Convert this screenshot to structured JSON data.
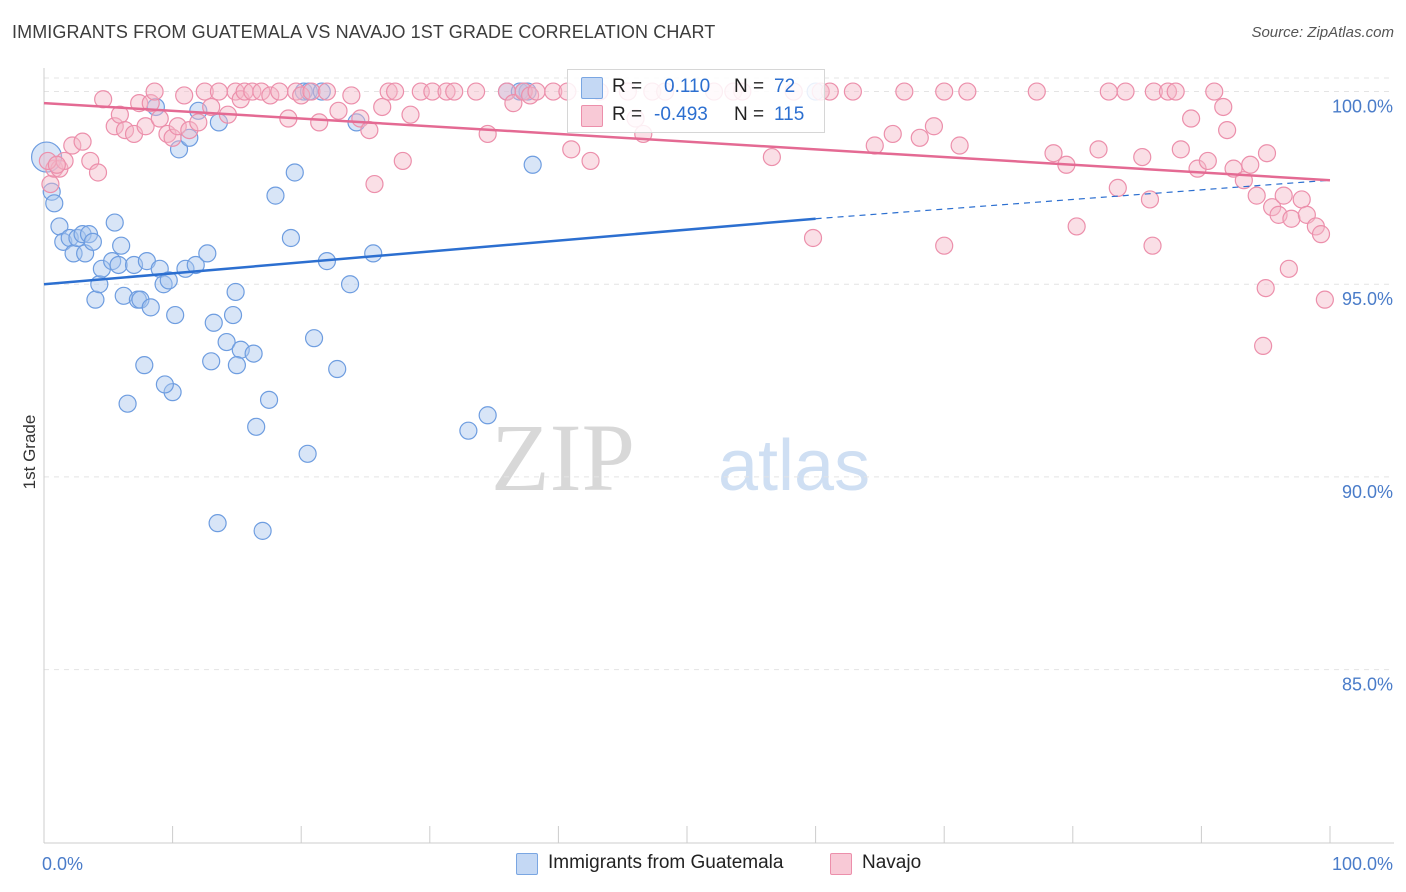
{
  "title": "IMMIGRANTS FROM GUATEMALA VS NAVAJO 1ST GRADE CORRELATION CHART",
  "source": "Source: ZipAtlas.com",
  "watermark": {
    "zip": "ZIP",
    "atlas": "atlas"
  },
  "colors": {
    "blue_fill": "#a9c6ee",
    "blue_stroke": "#6e9de0",
    "blue_line": "#2c6fd0",
    "pink_fill": "#f5b7c8",
    "pink_stroke": "#ec8fab",
    "pink_line": "#e46a93",
    "tick_label": "#4a7cc9",
    "grid": "#e4e4e4",
    "axis": "#cccccc"
  },
  "legend_stats": [
    {
      "r_label": "R =",
      "r_value": "0.110",
      "n_label": "N =",
      "n_value": "72",
      "color": "blue"
    },
    {
      "r_label": "R =",
      "r_value": "-0.493",
      "n_label": "N =",
      "n_value": "115",
      "color": "pink"
    }
  ],
  "chart_data": {
    "type": "scatter",
    "title": "IMMIGRANTS FROM GUATEMALA VS NAVAJO 1ST GRADE CORRELATION CHART",
    "xlabel": "",
    "ylabel": "1st Grade",
    "xlim": [
      0,
      100
    ],
    "ylim": [
      80.5,
      100.3
    ],
    "x_tick_labels": [
      "0.0%",
      "100.0%"
    ],
    "y_ticks": [
      85,
      90,
      95,
      100
    ],
    "y_tick_labels": [
      "85.0%",
      "90.0%",
      "95.0%",
      "100.0%"
    ],
    "legend": [
      "Immigrants from Guatemala",
      "Navajo"
    ],
    "series": [
      {
        "name": "Immigrants from Guatemala",
        "color": "blue",
        "trend": {
          "x": [
            0,
            60
          ],
          "y": [
            95.0,
            96.7
          ],
          "dashed_to": [
            100,
            97.7
          ]
        },
        "points": [
          [
            0.2,
            98.3
          ],
          [
            0.6,
            97.4
          ],
          [
            0.8,
            97.1
          ],
          [
            1.2,
            96.5
          ],
          [
            1.5,
            96.1
          ],
          [
            2.0,
            96.2
          ],
          [
            2.3,
            95.8
          ],
          [
            2.6,
            96.2
          ],
          [
            3.0,
            96.3
          ],
          [
            3.2,
            95.8
          ],
          [
            3.5,
            96.3
          ],
          [
            3.8,
            96.1
          ],
          [
            4.0,
            94.6
          ],
          [
            4.3,
            95.0
          ],
          [
            4.5,
            95.4
          ],
          [
            5.3,
            95.6
          ],
          [
            5.5,
            96.6
          ],
          [
            5.8,
            95.5
          ],
          [
            6.0,
            96.0
          ],
          [
            6.2,
            94.7
          ],
          [
            7.0,
            95.5
          ],
          [
            7.3,
            94.6
          ],
          [
            7.5,
            94.6
          ],
          [
            8.0,
            95.6
          ],
          [
            8.3,
            94.4
          ],
          [
            8.7,
            99.6
          ],
          [
            9.0,
            95.4
          ],
          [
            9.3,
            95.0
          ],
          [
            9.7,
            95.1
          ],
          [
            10.2,
            94.2
          ],
          [
            10.5,
            98.5
          ],
          [
            11.0,
            95.4
          ],
          [
            11.3,
            98.8
          ],
          [
            11.8,
            95.5
          ],
          [
            12.0,
            99.5
          ],
          [
            12.7,
            95.8
          ],
          [
            13.2,
            94.0
          ],
          [
            13.6,
            99.2
          ],
          [
            14.2,
            93.5
          ],
          [
            14.7,
            94.2
          ],
          [
            14.9,
            94.8
          ],
          [
            15.3,
            93.3
          ],
          [
            16.3,
            93.2
          ],
          [
            18.0,
            97.3
          ],
          [
            19.2,
            96.2
          ],
          [
            19.5,
            97.9
          ],
          [
            20.2,
            100.0
          ],
          [
            20.6,
            100.0
          ],
          [
            21.6,
            100.0
          ],
          [
            21.0,
            93.6
          ],
          [
            22.0,
            95.6
          ],
          [
            22.8,
            92.8
          ],
          [
            23.8,
            95.0
          ],
          [
            24.3,
            99.2
          ],
          [
            25.6,
            95.8
          ],
          [
            36.0,
            100.0
          ],
          [
            37.0,
            100.0
          ],
          [
            37.6,
            100.0
          ],
          [
            37.3,
            100.0
          ],
          [
            38.0,
            98.1
          ],
          [
            60.0,
            100.0
          ],
          [
            7.8,
            92.9
          ],
          [
            6.5,
            91.9
          ],
          [
            10.0,
            92.2
          ],
          [
            9.4,
            92.4
          ],
          [
            13.0,
            93.0
          ],
          [
            15.0,
            92.9
          ],
          [
            17.5,
            92.0
          ],
          [
            33.0,
            91.2
          ],
          [
            34.5,
            91.6
          ],
          [
            20.5,
            90.6
          ],
          [
            13.5,
            88.8
          ],
          [
            16.5,
            91.3
          ],
          [
            17.0,
            88.6
          ]
        ]
      },
      {
        "name": "Navajo",
        "color": "pink",
        "trend": {
          "x": [
            0,
            100
          ],
          "y": [
            99.7,
            97.7
          ]
        },
        "points": [
          [
            0.5,
            97.6
          ],
          [
            0.8,
            98.0
          ],
          [
            1.2,
            98.0
          ],
          [
            1.6,
            98.2
          ],
          [
            2.2,
            98.6
          ],
          [
            3.0,
            98.7
          ],
          [
            3.6,
            98.2
          ],
          [
            4.2,
            97.9
          ],
          [
            4.6,
            99.8
          ],
          [
            5.5,
            99.1
          ],
          [
            5.9,
            99.4
          ],
          [
            6.3,
            99.0
          ],
          [
            7.0,
            98.9
          ],
          [
            7.4,
            99.7
          ],
          [
            7.9,
            99.1
          ],
          [
            8.3,
            99.7
          ],
          [
            8.6,
            100.0
          ],
          [
            9.0,
            99.3
          ],
          [
            9.6,
            98.9
          ],
          [
            10.0,
            98.8
          ],
          [
            10.4,
            99.1
          ],
          [
            10.9,
            99.9
          ],
          [
            11.3,
            99.0
          ],
          [
            12.0,
            99.2
          ],
          [
            12.5,
            100.0
          ],
          [
            13.0,
            99.6
          ],
          [
            13.6,
            100.0
          ],
          [
            14.3,
            99.4
          ],
          [
            14.9,
            100.0
          ],
          [
            15.3,
            99.8
          ],
          [
            15.6,
            100.0
          ],
          [
            16.2,
            100.0
          ],
          [
            16.9,
            100.0
          ],
          [
            17.6,
            99.9
          ],
          [
            18.3,
            100.0
          ],
          [
            19.0,
            99.3
          ],
          [
            19.6,
            100.0
          ],
          [
            20.0,
            99.9
          ],
          [
            20.8,
            100.0
          ],
          [
            21.4,
            99.2
          ],
          [
            22.0,
            100.0
          ],
          [
            22.9,
            99.5
          ],
          [
            23.9,
            99.9
          ],
          [
            24.6,
            99.3
          ],
          [
            25.3,
            99.0
          ],
          [
            25.7,
            97.6
          ],
          [
            26.3,
            99.6
          ],
          [
            26.8,
            100.0
          ],
          [
            27.3,
            100.0
          ],
          [
            27.9,
            98.2
          ],
          [
            28.5,
            99.4
          ],
          [
            29.3,
            100.0
          ],
          [
            30.2,
            100.0
          ],
          [
            31.3,
            100.0
          ],
          [
            31.9,
            100.0
          ],
          [
            33.6,
            100.0
          ],
          [
            34.5,
            98.9
          ],
          [
            36.0,
            100.0
          ],
          [
            36.5,
            99.7
          ],
          [
            37.3,
            100.0
          ],
          [
            37.8,
            99.9
          ],
          [
            38.3,
            100.0
          ],
          [
            39.6,
            100.0
          ],
          [
            40.7,
            100.0
          ],
          [
            41.0,
            98.5
          ],
          [
            42.5,
            98.2
          ],
          [
            43.2,
            100.0
          ],
          [
            45.4,
            100.0
          ],
          [
            46.6,
            98.9
          ],
          [
            46.0,
            99.3
          ],
          [
            47.3,
            100.0
          ],
          [
            48.3,
            100.0
          ],
          [
            52.1,
            100.0
          ],
          [
            53.6,
            100.0
          ],
          [
            54.3,
            100.0
          ],
          [
            56.6,
            98.3
          ],
          [
            58.3,
            100.0
          ],
          [
            59.8,
            96.2
          ],
          [
            60.4,
            100.0
          ],
          [
            61.1,
            100.0
          ],
          [
            62.9,
            100.0
          ],
          [
            64.6,
            98.6
          ],
          [
            66.9,
            100.0
          ],
          [
            66.0,
            98.9
          ],
          [
            68.1,
            98.8
          ],
          [
            69.2,
            99.1
          ],
          [
            70.0,
            100.0
          ],
          [
            71.8,
            100.0
          ],
          [
            71.2,
            98.6
          ],
          [
            77.2,
            100.0
          ],
          [
            78.5,
            98.4
          ],
          [
            79.5,
            98.1
          ],
          [
            80.3,
            96.5
          ],
          [
            82.0,
            98.5
          ],
          [
            82.8,
            100.0
          ],
          [
            83.5,
            97.5
          ],
          [
            84.1,
            100.0
          ],
          [
            85.4,
            98.3
          ],
          [
            86.0,
            97.2
          ],
          [
            86.3,
            100.0
          ],
          [
            87.4,
            100.0
          ],
          [
            88.4,
            98.5
          ],
          [
            89.2,
            99.3
          ],
          [
            89.7,
            98.0
          ],
          [
            90.5,
            98.2
          ],
          [
            91.0,
            100.0
          ],
          [
            91.7,
            99.6
          ],
          [
            92.0,
            99.0
          ],
          [
            92.5,
            98.0
          ],
          [
            93.3,
            97.7
          ],
          [
            93.8,
            98.1
          ],
          [
            94.3,
            97.3
          ],
          [
            95.1,
            98.4
          ],
          [
            95.5,
            97.0
          ],
          [
            96.0,
            96.8
          ],
          [
            96.4,
            97.3
          ],
          [
            97.0,
            96.7
          ],
          [
            97.8,
            97.2
          ],
          [
            98.2,
            96.8
          ],
          [
            98.9,
            96.5
          ],
          [
            99.3,
            96.3
          ],
          [
            99.6,
            94.6
          ],
          [
            95.0,
            94.9
          ],
          [
            96.8,
            95.4
          ],
          [
            94.8,
            93.4
          ],
          [
            86.2,
            96.0
          ],
          [
            70.0,
            96.0
          ],
          [
            88.0,
            100.0
          ],
          [
            0.3,
            98.2
          ],
          [
            1.0,
            98.1
          ]
        ]
      }
    ]
  }
}
